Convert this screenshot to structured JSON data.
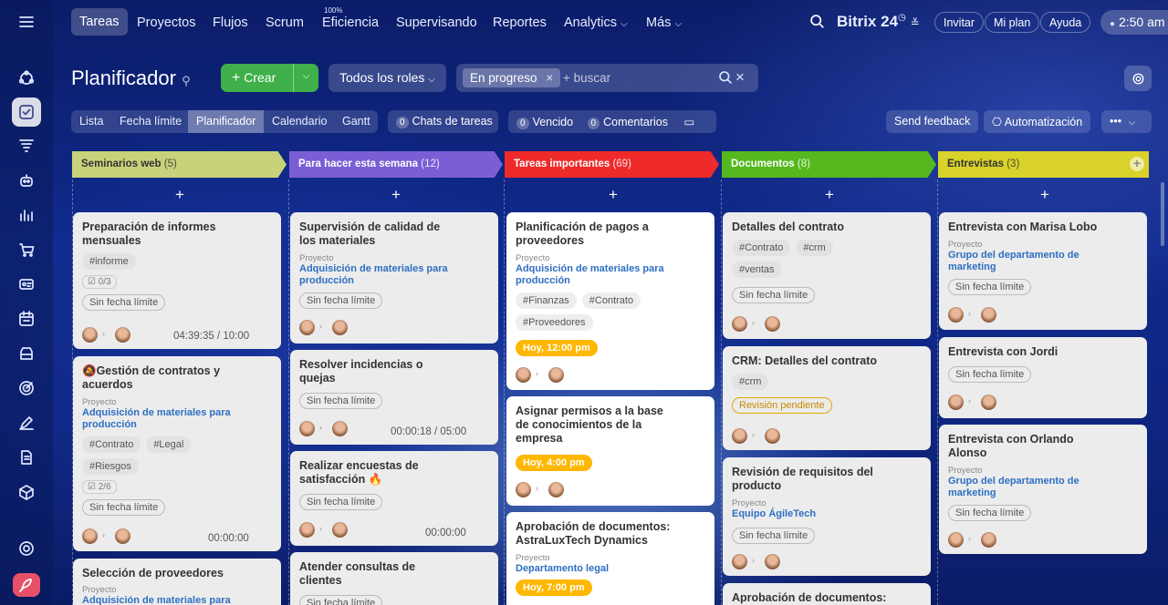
{
  "sidebar": {
    "icons": [
      "menu-icon",
      "feed-icon",
      "tasks-icon",
      "funnel-icon",
      "robot-icon",
      "chart-icon",
      "cart-icon",
      "contact-card-icon",
      "calendar-icon",
      "inbox-icon",
      "target-icon",
      "pen-icon",
      "document-icon",
      "box-icon",
      "settings-icon",
      "rocket-icon"
    ]
  },
  "topnav": {
    "items": [
      "Tareas",
      "Proyectos",
      "Flujos",
      "Scrum",
      "Eficiencia",
      "Supervisando",
      "Reportes",
      "Analytics",
      "Más"
    ],
    "efficiency_sup": "100%",
    "brand": "Bitrix 24",
    "invite": "Invitar",
    "plan": "Mi plan",
    "help": "Ayuda",
    "time": "2:50 am"
  },
  "toolbar": {
    "title": "Planificador",
    "create": "Crear",
    "roles": "Todos los roles",
    "filter_chip": "En progreso",
    "search_placeholder": "+ buscar"
  },
  "views": {
    "tabs": [
      "Lista",
      "Fecha límite",
      "Planificador",
      "Calendario",
      "Gantt"
    ],
    "chats": "Chats de tareas",
    "chats_count": "0",
    "overdue": "Vencido",
    "overdue_count": "0",
    "comments": "Comentarios",
    "comments_count": "0",
    "feedback": "Send feedback",
    "automation": "Automatización"
  },
  "columns": [
    {
      "name": "Seminarios web",
      "count": "(5)",
      "color": "#c8d27a"
    },
    {
      "name": "Para hacer esta semana",
      "count": "(12)",
      "color": "#7a5ed6"
    },
    {
      "name": "Tareas importantes",
      "count": "(69)",
      "color": "#ee2a2a"
    },
    {
      "name": "Documentos",
      "count": "(8)",
      "color": "#55b81e"
    },
    {
      "name": "Entrevistas",
      "count": "(3)",
      "color": "#d8d22a"
    }
  ],
  "cards": {
    "c1a": {
      "title": "Preparación de informes mensuales",
      "tag1": "#informe",
      "check": "0/3",
      "deadline": "Sin fecha límite",
      "timer": "04:39:35 / 10:00"
    },
    "c1b": {
      "title": "Gestión de contratos y acuerdos",
      "label": "Proyecto",
      "project": "Adquisición de materiales para producción",
      "tag1": "#Contrato",
      "tag2": "#Legal",
      "tag3": "#Riesgos",
      "check": "2/6",
      "deadline": "Sin fecha límite",
      "timer": "00:00:00"
    },
    "c1c": {
      "title": "Selección de proveedores",
      "label": "Proyecto",
      "project": "Adquisición de materiales para"
    },
    "c2a": {
      "title": "Supervisión de calidad de los materiales",
      "label": "Proyecto",
      "project": "Adquisición de materiales para producción",
      "deadline": "Sin fecha límite"
    },
    "c2b": {
      "title": "Resolver incidencias o quejas",
      "deadline": "Sin fecha límite",
      "timer": "00:00:18 / 05:00"
    },
    "c2c": {
      "title": "Realizar encuestas de satisfacción",
      "deadline": "Sin fecha límite",
      "timer": "00:00:00"
    },
    "c2d": {
      "title": "Atender consultas de clientes",
      "deadline": "Sin fecha límite"
    },
    "c3a": {
      "title": "Planificación de pagos a proveedores",
      "label": "Proyecto",
      "project": "Adquisición de materiales para producción",
      "tag1": "#Finanzas",
      "tag2": "#Contrato",
      "tag3": "#Proveedores",
      "deadline": "Hoy, 12:00 pm"
    },
    "c3b": {
      "title": "Asignar permisos a la base de conocimientos de la empresa",
      "deadline": "Hoy, 4:00 pm"
    },
    "c3c": {
      "title": "Aprobación de documentos: AstraLuxTech Dynamics",
      "label": "Proyecto",
      "project": "Departamento legal",
      "deadline": "Hoy, 7:00 pm"
    },
    "c4a": {
      "title": "Detalles del contrato",
      "tag1": "#Contrato",
      "tag2": "#crm",
      "tag3": "#ventas",
      "deadline": "Sin fecha límite"
    },
    "c4b": {
      "title": "CRM: Detalles del contrato",
      "tag1": "#crm",
      "deadline": "Revisión pendiente"
    },
    "c4c": {
      "title": "Revisión de requisitos del producto",
      "label": "Proyecto",
      "project": "Equipo ÁgileTech",
      "deadline": "Sin fecha límite"
    },
    "c4d": {
      "title": "Aprobación de documentos:"
    },
    "c5a": {
      "title": "Entrevista con Marisa Lobo",
      "label": "Proyecto",
      "project": "Grupo del departamento de marketing",
      "deadline": "Sin fecha límite"
    },
    "c5b": {
      "title": "Entrevista con Jordi",
      "deadline": "Sin fecha límite"
    },
    "c5c": {
      "title": "Entrevista con Orlando Alonso",
      "label": "Proyecto",
      "project": "Grupo del departamento de marketing",
      "deadline": "Sin fecha límite"
    }
  }
}
